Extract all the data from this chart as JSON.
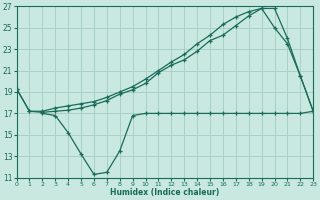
{
  "xlabel": "Humidex (Indice chaleur)",
  "bg_color": "#c8e8e0",
  "grid_color": "#a8d0c8",
  "line_color": "#1a6b5a",
  "x_min": 0,
  "x_max": 23,
  "y_min": 11,
  "y_max": 27,
  "yticks": [
    11,
    13,
    15,
    17,
    19,
    21,
    23,
    25,
    27
  ],
  "xticks": [
    0,
    1,
    2,
    3,
    4,
    5,
    6,
    7,
    8,
    9,
    10,
    11,
    12,
    13,
    14,
    15,
    16,
    17,
    18,
    19,
    20,
    21,
    22,
    23
  ],
  "line1_x": [
    0,
    1,
    2,
    3,
    4,
    5,
    6,
    7,
    8,
    9,
    10,
    11,
    12,
    13,
    14,
    15,
    16,
    17,
    18,
    19,
    20,
    21,
    22,
    23
  ],
  "line1_y": [
    19.3,
    17.2,
    17.2,
    17.5,
    17.7,
    17.9,
    18.1,
    18.5,
    19.0,
    19.5,
    20.2,
    21.0,
    21.8,
    22.5,
    23.5,
    24.3,
    25.3,
    26.0,
    26.5,
    26.8,
    25.0,
    23.5,
    20.5,
    17.2
  ],
  "line2_x": [
    0,
    1,
    2,
    3,
    4,
    5,
    6,
    7,
    8,
    9,
    10,
    11,
    12,
    13,
    14,
    15,
    16,
    17,
    18,
    19,
    20,
    21,
    22,
    23
  ],
  "line2_y": [
    19.3,
    17.2,
    17.1,
    17.2,
    17.3,
    17.5,
    17.8,
    18.2,
    18.8,
    19.2,
    19.8,
    20.8,
    21.5,
    22.0,
    22.8,
    23.8,
    24.3,
    25.2,
    26.1,
    26.8,
    26.8,
    24.0,
    20.5,
    17.2
  ],
  "line3_x": [
    2,
    3,
    4,
    5,
    6,
    7,
    8,
    9,
    10,
    11,
    12,
    13,
    14,
    15,
    16,
    17,
    18,
    19,
    20,
    21,
    22,
    23
  ],
  "line3_y": [
    17.0,
    16.8,
    15.2,
    13.2,
    11.3,
    11.5,
    13.5,
    16.8,
    17.0,
    17.0,
    17.0,
    17.0,
    17.0,
    17.0,
    17.0,
    17.0,
    17.0,
    17.0,
    17.0,
    17.0,
    17.0,
    17.2
  ]
}
